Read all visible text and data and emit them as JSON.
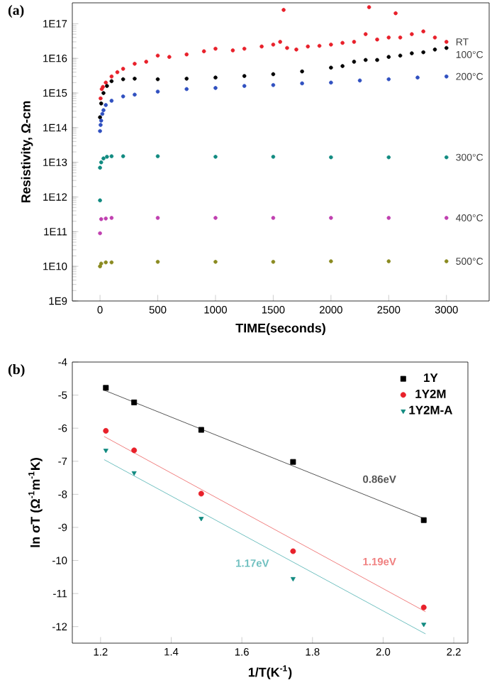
{
  "chart_data": [
    {
      "type": "scatter",
      "title": "(a)",
      "xlabel": "TIME(seconds)",
      "ylabel": "Resistivity, Ω-cm",
      "log": "y",
      "marker": "circle",
      "xlim": [
        -240,
        3370
      ],
      "ylim": [
        1000000000.0,
        4e+17
      ],
      "xticks": [
        0,
        500,
        1000,
        1500,
        2000,
        2500,
        3000
      ],
      "yticks": [
        {
          "value": 1000000000.0,
          "label": "1E9"
        },
        {
          "value": 10000000000.0,
          "label": "1E10"
        },
        {
          "value": 100000000000.0,
          "label": "1E11"
        },
        {
          "value": 1000000000000.0,
          "label": "1E12"
        },
        {
          "value": 10000000000000.0,
          "label": "1E13"
        },
        {
          "value": 100000000000000.0,
          "label": "1E14"
        },
        {
          "value": 1000000000000000.0,
          "label": "1E15"
        },
        {
          "value": 1e+16,
          "label": "1E16"
        },
        {
          "value": 1e+17,
          "label": "1E17"
        }
      ],
      "series": [
        {
          "name": "RT",
          "color": "#e8202a",
          "x": [
            5,
            15,
            25,
            50,
            100,
            150,
            200,
            300,
            400,
            500,
            600,
            750,
            900,
            1000,
            1150,
            1250,
            1400,
            1500,
            1560,
            1590,
            1620,
            1700,
            1800,
            1900,
            2000,
            2100,
            2200,
            2300,
            2330,
            2400,
            2500,
            2560,
            2600,
            2700,
            2800,
            2900,
            3000
          ],
          "values": [
            700000000000000.0,
            1300000000000000.0,
            1500000000000000.0,
            2000000000000000.0,
            3000000000000000.0,
            4000000000000000.0,
            5000000000000000.0,
            7000000000000000.0,
            8000000000000000.0,
            1.2e+16,
            1.1e+16,
            1.3e+16,
            1.6e+16,
            1.9e+16,
            1.7e+16,
            1.9e+16,
            2.2e+16,
            2.5e+16,
            3e+16,
            2.5e+17,
            2e+16,
            1.8e+16,
            2.2e+16,
            2.3e+16,
            2.5e+16,
            2.8e+16,
            3e+16,
            5e+16,
            3e+17,
            3.5e+16,
            4e+16,
            2e+17,
            4e+16,
            5e+16,
            6e+16,
            4e+16,
            3e+16
          ]
        },
        {
          "name": "100°C",
          "color": "#000000",
          "x": [
            0,
            10,
            30,
            60,
            100,
            200,
            300,
            500,
            750,
            1000,
            1250,
            1500,
            1750,
            2000,
            2100,
            2200,
            2300,
            2400,
            2500,
            2600,
            2700,
            2800,
            2900,
            3000
          ],
          "values": [
            200000000000000.0,
            500000000000000.0,
            1000000000000000.0,
            1600000000000000.0,
            2200000000000000.0,
            2500000000000000.0,
            2600000000000000.0,
            2500000000000000.0,
            2600000000000000.0,
            2800000000000000.0,
            3100000000000000.0,
            3500000000000000.0,
            4200000000000000.0,
            5400000000000000.0,
            6000000000000000.0,
            8000000000000000.0,
            9000000000000000.0,
            9000000000000000.0,
            1.1e+16,
            1.2e+16,
            1.4e+16,
            1.5e+16,
            1.8e+16,
            2e+16
          ]
        },
        {
          "name": "200°C",
          "color": "#3050c0",
          "x": [
            0,
            5,
            10,
            20,
            30,
            50,
            100,
            200,
            300,
            500,
            750,
            1000,
            1250,
            1500,
            1750,
            2000,
            2250,
            2500,
            2750,
            3000
          ],
          "values": [
            80000000000000.0,
            120000000000000.0,
            160000000000000.0,
            250000000000000.0,
            320000000000000.0,
            450000000000000.0,
            600000000000000.0,
            800000000000000.0,
            900000000000000.0,
            1100000000000000.0,
            1300000000000000.0,
            1400000000000000.0,
            1600000000000000.0,
            1700000000000000.0,
            1900000000000000.0,
            2000000000000000.0,
            2300000000000000.0,
            2500000000000000.0,
            2800000000000000.0,
            3000000000000000.0
          ]
        },
        {
          "name": "300°C",
          "color": "#108a80",
          "x": [
            0,
            0,
            10,
            30,
            60,
            100,
            200,
            500,
            1000,
            1500,
            2000,
            2500,
            3000
          ],
          "values": [
            800000000000.0,
            7000000000000.0,
            10000000000000.0,
            13000000000000.0,
            14500000000000.0,
            15000000000000.0,
            15000000000000.0,
            15000000000000.0,
            14500000000000.0,
            14500000000000.0,
            14000000000000.0,
            14000000000000.0,
            14000000000000.0
          ]
        },
        {
          "name": "400°C",
          "color": "#c040b0",
          "x": [
            0,
            10,
            50,
            100,
            500,
            1000,
            1500,
            2000,
            2500,
            3000
          ],
          "values": [
            90000000000.0,
            230000000000.0,
            240000000000.0,
            250000000000.0,
            250000000000.0,
            250000000000.0,
            250000000000.0,
            250000000000.0,
            250000000000.0,
            250000000000.0
          ]
        },
        {
          "name": "500°C",
          "color": "#8a8a20",
          "x": [
            0,
            10,
            50,
            100,
            500,
            1000,
            1500,
            2000,
            2500,
            3000
          ],
          "values": [
            10000000000.0,
            12000000000.0,
            13000000000.0,
            13000000000.0,
            13500000000.0,
            13500000000.0,
            13500000000.0,
            14000000000.0,
            14000000000.0,
            14000000000.0
          ]
        }
      ]
    },
    {
      "type": "scatter",
      "title": "(b)",
      "xlabel": "1/T(K$^{-1}$)",
      "ylabel": "ln σT (Ω$^{-1}$m$^{-1}$K)",
      "legend": "top right",
      "xlim": [
        1.12,
        2.24
      ],
      "ylim": [
        -12.5,
        -4
      ],
      "xticks": [
        1.2,
        1.4,
        1.6,
        1.8,
        {
          "value": 2,
          "label": "2.0"
        },
        2.2
      ],
      "yticks": [
        -12,
        -11,
        -10,
        -9,
        -8,
        -7,
        -6,
        -5,
        -4
      ],
      "series": [
        {
          "name": "1Y",
          "color": "#000000",
          "marker": "square",
          "x": [
            1.215,
            1.295,
            1.485,
            1.745,
            2.115
          ],
          "values": [
            -4.78,
            -5.22,
            -6.05,
            -7.02,
            -8.78
          ]
        },
        {
          "name": "1Y2M",
          "color": "#e8202a",
          "marker": "circle",
          "x": [
            1.215,
            1.295,
            1.485,
            1.745,
            2.115
          ],
          "values": [
            -6.08,
            -6.67,
            -7.98,
            -9.72,
            -11.42
          ]
        },
        {
          "name": "1Y2M-A",
          "color": "#108a80",
          "marker": "triangle",
          "x": [
            1.215,
            1.295,
            1.485,
            1.745,
            2.115
          ],
          "values": [
            -6.67,
            -7.35,
            -8.73,
            -10.55,
            -11.93
          ]
        },
        {
          "type": "line",
          "color": "#555555",
          "x": [
            1.21,
            2.12
          ],
          "values": [
            -4.85,
            -8.75
          ]
        },
        {
          "type": "line",
          "color": "#f08080",
          "x": [
            1.21,
            2.12
          ],
          "values": [
            -6.25,
            -11.55
          ]
        },
        {
          "type": "line",
          "color": "#70c0c0",
          "x": [
            1.21,
            2.12
          ],
          "values": [
            -6.95,
            -12.22
          ]
        }
      ],
      "annotations": [
        "0.86eV",
        "1.19eV",
        "1.17eV"
      ]
    }
  ]
}
